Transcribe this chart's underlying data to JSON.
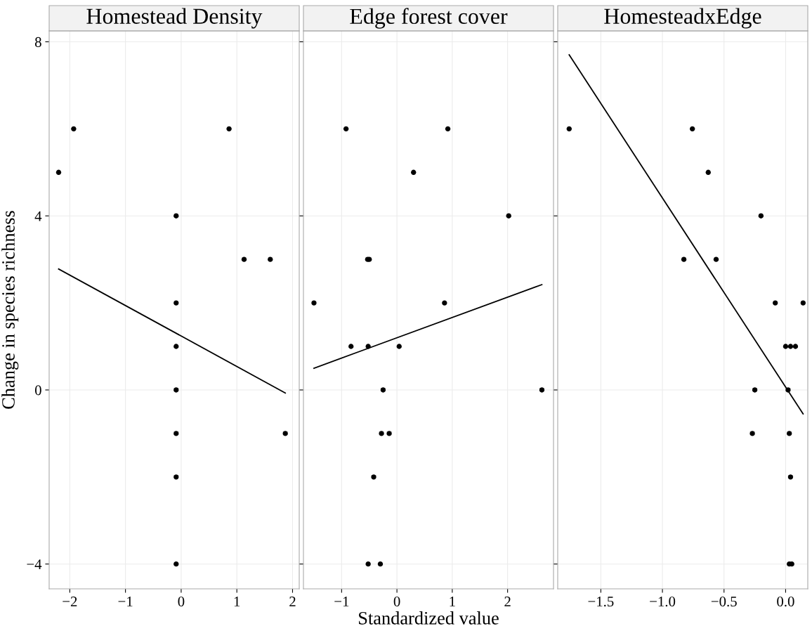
{
  "chart_data": [
    {
      "type": "scatter",
      "title": "Homestead Density",
      "ylabel": "Change in species richness",
      "xlim": [
        -2.37,
        2.12
      ],
      "xticks": [
        {
          "value": -2,
          "label": "−2"
        },
        {
          "value": -1,
          "label": "−1"
        },
        0,
        1,
        2
      ],
      "ylim": [
        -4.57,
        8.25
      ],
      "yticks": [
        {
          "value": -4,
          "label": "−4"
        },
        0,
        4,
        8
      ],
      "grid": true,
      "series": [
        {
          "marker": "circle",
          "color": "#000000",
          "x": [
            -2.2,
            -1.93,
            0.86,
            -0.09,
            -0.09,
            -0.09,
            -0.09,
            -0.09,
            -0.09,
            -0.09,
            1.13,
            1.6,
            1.87
          ],
          "values": [
            5,
            6,
            6,
            4,
            2,
            1,
            0,
            -1,
            -2,
            -4,
            3,
            3,
            -1
          ]
        },
        {
          "type": "line",
          "color": "#000000",
          "x": [
            -2.2,
            1.87
          ],
          "values": [
            2.78,
            -0.07
          ]
        }
      ]
    },
    {
      "type": "scatter",
      "title": "Edge forest cover",
      "xlabel": "Standardized value",
      "tick_labels": "x",
      "xlim": [
        -1.69,
        2.83
      ],
      "xticks": [
        {
          "value": -1,
          "label": "−1"
        },
        0,
        1,
        2
      ],
      "ylim": [
        -4.57,
        8.25
      ],
      "grid": true,
      "series": [
        {
          "marker": "circle",
          "color": "#000000",
          "x": [
            -0.92,
            0.92,
            0.3,
            2.02,
            -0.53,
            -0.5,
            -1.5,
            0.86,
            -0.83,
            -0.52,
            0.04,
            -0.25,
            2.62,
            -0.28,
            -0.14,
            -0.42,
            -0.52,
            -0.3
          ],
          "values": [
            6,
            6,
            5,
            4,
            3,
            3,
            2,
            2,
            1,
            1,
            1,
            0,
            0,
            -1,
            -1,
            -2,
            -4,
            -4
          ]
        },
        {
          "type": "line",
          "color": "#000000",
          "x": [
            -1.5,
            2.62
          ],
          "values": [
            0.5,
            2.42
          ]
        }
      ]
    },
    {
      "type": "scatter",
      "title": "HomesteadxEdge",
      "tick_labels": "x",
      "xlim": [
        -1.85,
        0.18
      ],
      "xticks": [
        {
          "value": -1.5,
          "label": "−1.5"
        },
        {
          "value": -1.0,
          "label": "−1.0"
        },
        {
          "value": -0.5,
          "label": "−0.5"
        },
        {
          "value": 0.0,
          "label": "0.0"
        }
      ],
      "ylim": [
        -4.57,
        8.25
      ],
      "grid": true,
      "series": [
        {
          "marker": "circle",
          "color": "#000000",
          "x": [
            -1.757,
            -0.757,
            -0.628,
            -0.2,
            -0.826,
            -0.564,
            -0.084,
            0.142,
            0.0,
            0.04,
            0.08,
            -0.25,
            0.02,
            -0.27,
            0.03,
            0.04,
            0.03,
            0.05
          ],
          "values": [
            6,
            6,
            5,
            4,
            3,
            3,
            2,
            2,
            1,
            1,
            1,
            0,
            0,
            -1,
            -1,
            -2,
            -4,
            -4
          ]
        },
        {
          "type": "line",
          "color": "#000000",
          "x": [
            -1.757,
            0.142
          ],
          "values": [
            7.7,
            -0.55
          ]
        }
      ]
    }
  ]
}
